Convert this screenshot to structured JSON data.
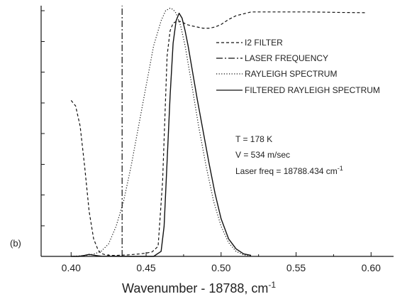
{
  "chart_data": {
    "type": "line",
    "panel_label": "(b)",
    "xlabel": "Wavenumber - 18788, cm",
    "xlabel_superscript": "-1",
    "xlim": [
      0.38,
      0.615
    ],
    "ylim": [
      0,
      1.0
    ],
    "x_ticks": [
      0.4,
      0.45,
      0.5,
      0.55,
      0.6
    ],
    "x_tick_labels": [
      "0.40",
      "0.45",
      "0.50",
      "0.55",
      "0.60"
    ],
    "y_minor_ticks": [
      0.0,
      0.122,
      0.245,
      0.367,
      0.49,
      0.612,
      0.735,
      0.857,
      0.98
    ],
    "y_tick_labels_shown": false,
    "legend_position": "right",
    "series": [
      {
        "name": "I2 FILTER",
        "style": "dashed",
        "x": [
          0.4,
          0.403,
          0.406,
          0.409,
          0.412,
          0.415,
          0.418,
          0.42,
          0.423,
          0.426,
          0.43,
          0.434,
          0.438,
          0.442,
          0.446,
          0.45,
          0.454,
          0.458,
          0.461,
          0.464,
          0.466,
          0.468,
          0.471,
          0.474,
          0.477,
          0.48,
          0.484,
          0.488,
          0.492,
          0.496,
          0.5,
          0.505,
          0.51,
          0.52,
          0.54,
          0.56,
          0.58,
          0.596
        ],
        "y": [
          0.622,
          0.6,
          0.52,
          0.36,
          0.18,
          0.07,
          0.025,
          0.012,
          0.006,
          0.004,
          0.004,
          0.005,
          0.006,
          0.008,
          0.01,
          0.013,
          0.018,
          0.04,
          0.3,
          0.8,
          0.9,
          0.93,
          0.94,
          0.935,
          0.925,
          0.92,
          0.915,
          0.91,
          0.91,
          0.915,
          0.925,
          0.945,
          0.96,
          0.975,
          0.975,
          0.975,
          0.973,
          0.972
        ]
      },
      {
        "name": "LASER FREQUENCY",
        "style": "dashdot",
        "x": [
          0.434,
          0.434
        ],
        "y": [
          0.0,
          1.0
        ]
      },
      {
        "name": "RAYLEIGH SPECTRUM",
        "style": "dotted",
        "x": [
          0.4,
          0.405,
          0.41,
          0.415,
          0.42,
          0.425,
          0.43,
          0.435,
          0.44,
          0.445,
          0.45,
          0.455,
          0.46,
          0.463,
          0.466,
          0.468,
          0.47,
          0.473,
          0.476,
          0.48,
          0.485,
          0.49,
          0.495,
          0.5,
          0.505,
          0.51,
          0.515,
          0.52
        ],
        "y": [
          0.0,
          0.002,
          0.004,
          0.009,
          0.02,
          0.05,
          0.12,
          0.22,
          0.36,
          0.52,
          0.68,
          0.84,
          0.94,
          0.98,
          0.99,
          0.985,
          0.97,
          0.92,
          0.84,
          0.7,
          0.52,
          0.36,
          0.22,
          0.12,
          0.055,
          0.02,
          0.006,
          0.002
        ]
      },
      {
        "name": "FILTERED RAYLEIGH SPECTRUM",
        "style": "solid",
        "x": [
          0.4,
          0.405,
          0.409,
          0.412,
          0.416,
          0.42,
          0.44,
          0.455,
          0.46,
          0.462,
          0.464,
          0.466,
          0.468,
          0.47,
          0.472,
          0.474,
          0.476,
          0.478,
          0.48,
          0.484,
          0.488,
          0.492,
          0.496,
          0.5,
          0.505,
          0.51,
          0.515,
          0.52
        ],
        "y": [
          0.0,
          0.0,
          0.004,
          0.008,
          0.004,
          0.001,
          0.0,
          0.0,
          0.02,
          0.12,
          0.38,
          0.64,
          0.85,
          0.94,
          0.97,
          0.95,
          0.9,
          0.84,
          0.77,
          0.63,
          0.5,
          0.37,
          0.25,
          0.15,
          0.07,
          0.03,
          0.01,
          0.004
        ]
      }
    ],
    "annotations": {
      "temperature": "T = 178 K",
      "velocity": "V = 534 m/sec",
      "laser_freq": "Laser freq = 18788.434 cm",
      "laser_freq_superscript": "-1"
    }
  }
}
